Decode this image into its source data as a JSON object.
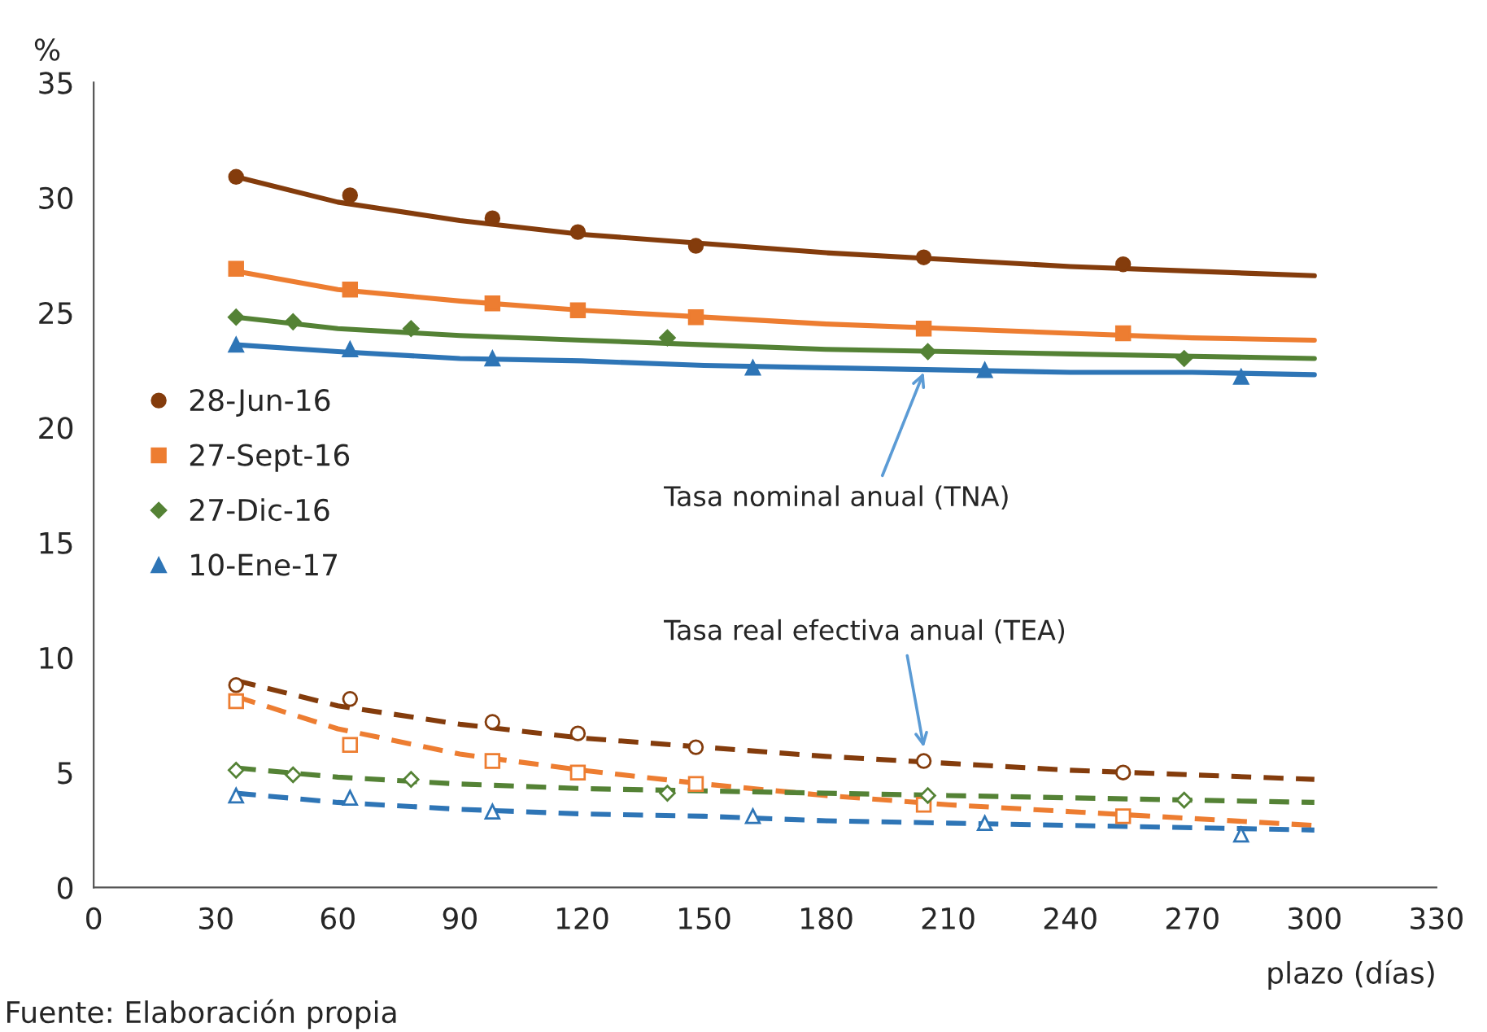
{
  "chart_data": {
    "type": "scatter",
    "ylabel": "%",
    "xlabel": "plazo (días)",
    "xlim": [
      0,
      330
    ],
    "xticks": [
      0,
      30,
      60,
      90,
      120,
      150,
      180,
      210,
      240,
      270,
      300,
      330
    ],
    "ylim": [
      0,
      35
    ],
    "yticks": [
      0,
      5,
      10,
      15,
      20,
      25,
      30,
      35
    ],
    "grid": false,
    "legend": "left",
    "annotations": [
      {
        "text": "Tasa nominal anual (TNA)",
        "x": 204,
        "y": 22.4
      },
      {
        "text": "Tasa real efectiva anual (TEA)",
        "x": 204,
        "y": 6.1
      },
      "Fuente: Elaboración propia"
    ],
    "series": [
      {
        "name": "28-Jun-16",
        "marker": "circle",
        "color": "#843c0c",
        "x": [
          35,
          63,
          98,
          119,
          148,
          204,
          253
        ],
        "values": [
          30.9,
          30.1,
          29.1,
          28.5,
          27.9,
          27.4,
          27.1
        ]
      },
      {
        "name": "27-Sept-16",
        "marker": "square",
        "color": "#ed7d31",
        "x": [
          35,
          63,
          98,
          119,
          148,
          204,
          253
        ],
        "values": [
          26.9,
          26.0,
          25.4,
          25.1,
          24.8,
          24.3,
          24.1
        ]
      },
      {
        "name": "27-Dic-16",
        "marker": "diamond",
        "color": "#548235",
        "x": [
          35,
          49,
          78,
          141,
          205,
          268
        ],
        "values": [
          24.8,
          24.6,
          24.3,
          23.9,
          23.3,
          23.0
        ]
      },
      {
        "name": "10-Ene-17",
        "marker": "triangle",
        "color": "#2e75b6",
        "x": [
          35,
          63,
          98,
          162,
          219,
          282
        ],
        "values": [
          23.6,
          23.4,
          23.0,
          22.6,
          22.5,
          22.2
        ]
      },
      {
        "type": "line",
        "line_style": "solid",
        "color": "#843c0c",
        "x": [
          35,
          60,
          90,
          120,
          150,
          180,
          210,
          240,
          270,
          300
        ],
        "values": [
          30.9,
          29.8,
          29.0,
          28.4,
          28.0,
          27.6,
          27.3,
          27.0,
          26.8,
          26.6
        ]
      },
      {
        "type": "line",
        "line_style": "solid",
        "color": "#ed7d31",
        "x": [
          35,
          60,
          90,
          120,
          150,
          180,
          210,
          240,
          270,
          300
        ],
        "values": [
          26.8,
          26.0,
          25.5,
          25.1,
          24.8,
          24.5,
          24.3,
          24.1,
          23.9,
          23.8
        ]
      },
      {
        "type": "line",
        "line_style": "solid",
        "color": "#548235",
        "x": [
          35,
          60,
          90,
          120,
          150,
          180,
          210,
          240,
          270,
          300
        ],
        "values": [
          24.8,
          24.3,
          24.0,
          23.8,
          23.6,
          23.4,
          23.3,
          23.2,
          23.1,
          23.0
        ]
      },
      {
        "type": "line",
        "line_style": "solid",
        "color": "#2e75b6",
        "x": [
          35,
          60,
          90,
          120,
          150,
          180,
          210,
          240,
          270,
          300
        ],
        "values": [
          23.6,
          23.3,
          23.0,
          22.9,
          22.7,
          22.6,
          22.5,
          22.4,
          22.4,
          22.3
        ]
      },
      {
        "marker": "circle",
        "color": "#843c0c",
        "x": [
          35,
          63,
          98,
          119,
          148,
          204,
          253
        ],
        "values": [
          8.8,
          8.2,
          7.2,
          6.7,
          6.1,
          5.5,
          5.0
        ]
      },
      {
        "marker": "square",
        "color": "#ed7d31",
        "x": [
          35,
          63,
          98,
          119,
          148,
          204,
          253
        ],
        "values": [
          8.1,
          6.2,
          5.5,
          5.0,
          4.5,
          3.6,
          3.1
        ]
      },
      {
        "marker": "diamond",
        "color": "#548235",
        "x": [
          35,
          49,
          78,
          141,
          205,
          268
        ],
        "values": [
          5.1,
          4.9,
          4.7,
          4.1,
          4.0,
          3.8
        ]
      },
      {
        "marker": "triangle",
        "color": "#2e75b6",
        "x": [
          35,
          63,
          98,
          162,
          219,
          282
        ],
        "values": [
          4.0,
          3.9,
          3.3,
          3.1,
          2.8,
          2.3
        ]
      },
      {
        "type": "line",
        "line_style": "dashed",
        "color": "#843c0c",
        "x": [
          35,
          60,
          90,
          120,
          150,
          180,
          210,
          240,
          270,
          300
        ],
        "values": [
          9.0,
          7.9,
          7.1,
          6.5,
          6.1,
          5.7,
          5.4,
          5.1,
          4.9,
          4.7
        ]
      },
      {
        "type": "line",
        "line_style": "dashed",
        "color": "#ed7d31",
        "x": [
          35,
          60,
          90,
          120,
          150,
          180,
          210,
          240,
          270,
          300
        ],
        "values": [
          8.3,
          6.9,
          5.8,
          5.1,
          4.5,
          4.0,
          3.6,
          3.3,
          3.0,
          2.7
        ]
      },
      {
        "type": "line",
        "line_style": "dashed",
        "color": "#548235",
        "x": [
          35,
          60,
          90,
          120,
          150,
          180,
          210,
          240,
          270,
          300
        ],
        "values": [
          5.2,
          4.8,
          4.5,
          4.3,
          4.2,
          4.1,
          4.0,
          3.9,
          3.8,
          3.7
        ]
      },
      {
        "type": "line",
        "line_style": "dashed",
        "color": "#2e75b6",
        "x": [
          35,
          60,
          90,
          120,
          150,
          180,
          210,
          240,
          270,
          300
        ],
        "values": [
          4.1,
          3.7,
          3.4,
          3.2,
          3.1,
          2.9,
          2.8,
          2.7,
          2.6,
          2.5
        ]
      }
    ]
  }
}
